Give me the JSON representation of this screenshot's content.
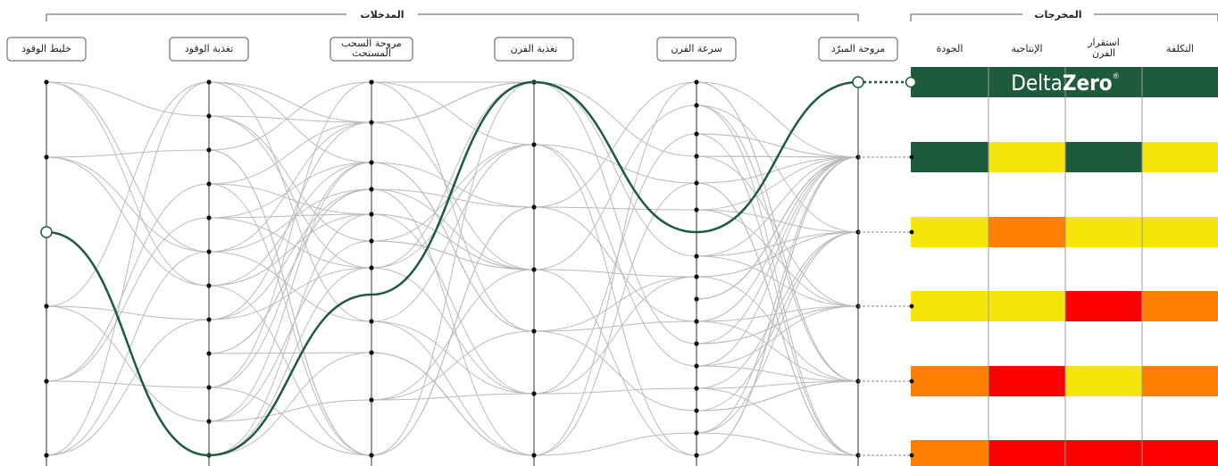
{
  "inputs": {
    "title": "المدخلات",
    "axes": [
      "خليط الوقود",
      "تغذية الوقود",
      "مروحة السحب المستحث",
      "تغذية الفرن",
      "سرعة الفرن",
      "مروحة المبرّد"
    ]
  },
  "outputs": {
    "title": "المخرجات",
    "columns": [
      "الجودة",
      "الإنتاجية",
      "استقرار الفرن",
      "التكلفة"
    ],
    "logo": {
      "light": "Delta",
      "bold": "Zero",
      "mark": "®"
    },
    "colors": [
      [
        "#1e5a3c",
        "#f5e50a",
        "#1e5a3c",
        "#f5e50a"
      ],
      [
        "#f5e50a",
        "#ff8000",
        "#f5e50a",
        "#f5e50a"
      ],
      [
        "#f5e50a",
        "#f5e50a",
        "#ff0000",
        "#ff8000"
      ],
      [
        "#ff8000",
        "#ff0000",
        "#f5e50a",
        "#ff8000"
      ],
      [
        "#ff8000",
        "#ff0000",
        "#ff0000",
        "#ff0000"
      ]
    ]
  }
}
